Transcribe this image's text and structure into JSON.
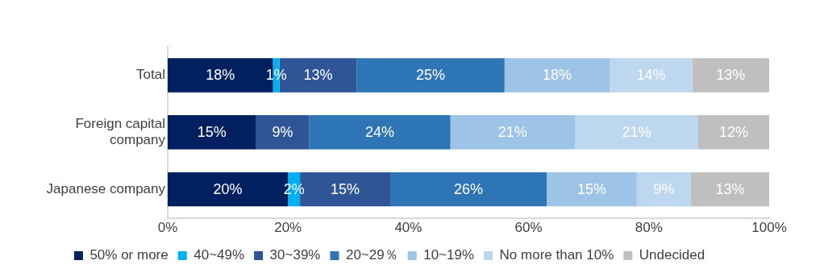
{
  "chart_data": {
    "type": "bar",
    "orientation": "horizontal",
    "stacked": true,
    "categories": [
      "Total",
      "Foreign capital company",
      "Japanese company"
    ],
    "series": [
      {
        "name": "50% or more",
        "color": "#002060",
        "values": [
          17.5,
          14.7,
          20
        ],
        "value_labels": [
          "18%",
          "15%",
          "20%"
        ]
      },
      {
        "name": "40~49%",
        "color": "#00b0f0",
        "values": [
          1.1,
          null,
          2
        ],
        "value_labels": [
          "1%",
          null,
          "2%"
        ]
      },
      {
        "name": "30~39%",
        "color": "#2f5597",
        "values": [
          12.8,
          8.8,
          15
        ],
        "value_labels": [
          "13%",
          "9%",
          "15%"
        ]
      },
      {
        "name": "20~29％",
        "color": "#2e75b6",
        "values": [
          24.6,
          23.5,
          26
        ],
        "value_labels": [
          "25%",
          "24%",
          "26%"
        ]
      },
      {
        "name": "10~19%",
        "color": "#9dc3e6",
        "values": [
          17.5,
          20.7,
          15
        ],
        "value_labels": [
          "18%",
          "21%",
          "15%"
        ]
      },
      {
        "name": "No more than 10%",
        "color": "#bdd7ee",
        "values": [
          13.7,
          20.5,
          9
        ],
        "value_labels": [
          "14%",
          "21%",
          "9%"
        ]
      },
      {
        "name": "Undecided",
        "color": "#bfbfbf",
        "values": [
          12.8,
          11.8,
          13
        ],
        "value_labels": [
          "13%",
          "12%",
          "13%"
        ]
      }
    ],
    "xlim": [
      0,
      100
    ],
    "xticks": [
      {
        "value": 0,
        "label": "0%"
      },
      {
        "value": 20,
        "label": "20%"
      },
      {
        "value": 40,
        "label": "40%"
      },
      {
        "value": 60,
        "label": "60%"
      },
      {
        "value": 80,
        "label": "80%"
      },
      {
        "value": 100,
        "label": "100%"
      }
    ],
    "grid": false,
    "legend": "bottom"
  }
}
